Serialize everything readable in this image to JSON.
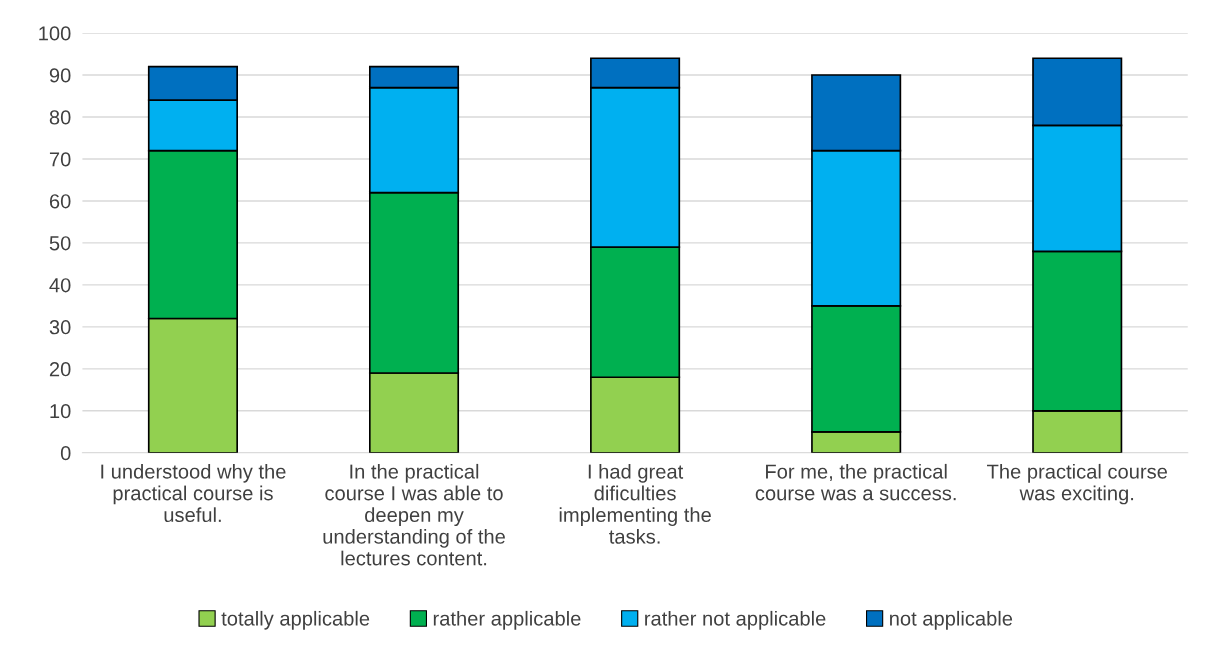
{
  "chart_data": {
    "type": "bar",
    "stacked": true,
    "categories": [
      "I understood why the practical course is useful.",
      "In the practical course I was able to deepen my understanding of the lectures content.",
      "I had great dificulties implementing the tasks.",
      "For me, the practical course was a success.",
      "The practical course was exciting."
    ],
    "series": [
      {
        "name": "totally applicable",
        "color": "#92d050",
        "values": [
          32,
          19,
          18,
          5,
          10
        ]
      },
      {
        "name": "rather applicable",
        "color": "#00b050",
        "values": [
          40,
          43,
          31,
          30,
          38
        ]
      },
      {
        "name": "rather not applicable",
        "color": "#00b0f0",
        "values": [
          12,
          25,
          38,
          37,
          30
        ]
      },
      {
        "name": "not applicable",
        "color": "#0070c0",
        "values": [
          8,
          5,
          7,
          18,
          16
        ]
      }
    ],
    "ylim": [
      0,
      100
    ],
    "yticks": [
      0,
      10,
      20,
      30,
      40,
      50,
      60,
      70,
      80,
      90,
      100
    ],
    "grid": "y",
    "legend": "bottom"
  }
}
